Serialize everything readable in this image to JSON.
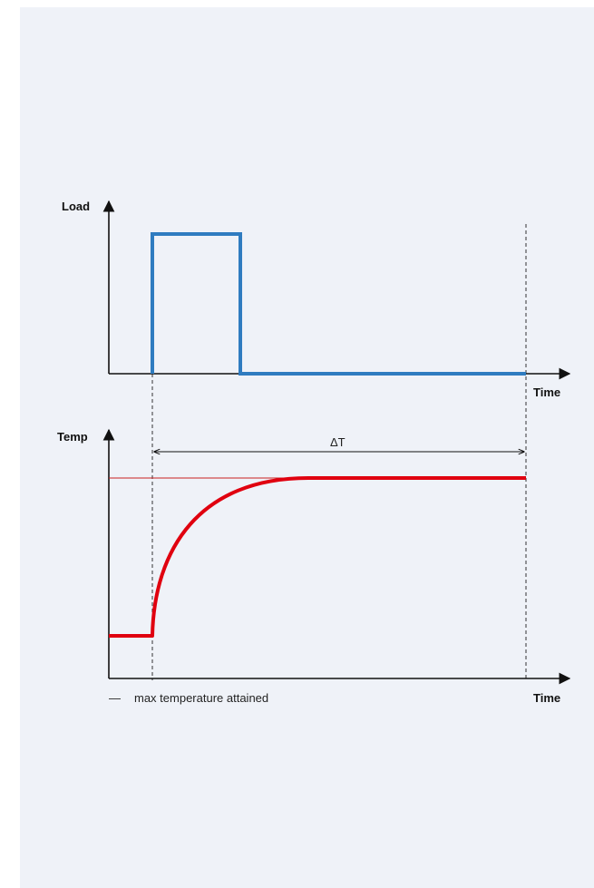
{
  "load_chart": {
    "y_axis_label": "Load",
    "x_axis_label": "Time",
    "color": "#2f7cc0"
  },
  "temp_chart": {
    "y_axis_label": "Temp",
    "x_axis_label": "Time",
    "delta_label": "ΔT",
    "color": "#e0000f",
    "reference_line_color": "#c82020"
  },
  "legend": {
    "marker": "—",
    "label": "max temperature attained"
  }
}
